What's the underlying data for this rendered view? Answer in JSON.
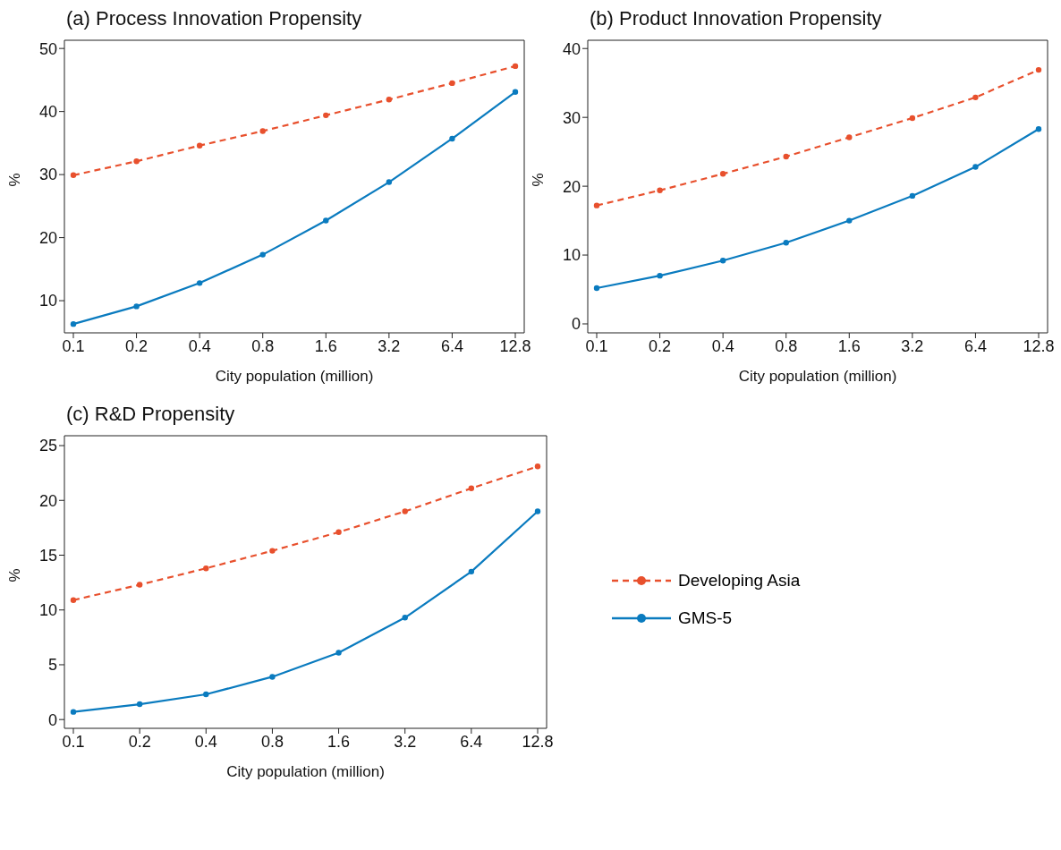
{
  "chart_data": [
    {
      "type": "line",
      "title": "(a) Process Innovation Propensity",
      "xlabel": "City population (million)",
      "ylabel": "%",
      "categories": [
        "0.1",
        "0.2",
        "0.4",
        "0.8",
        "1.6",
        "3.2",
        "6.4",
        "12.8"
      ],
      "ylim": [
        4.9,
        51.3
      ],
      "yticks": [
        10,
        20,
        30,
        40,
        50
      ],
      "marker": "circle",
      "series": [
        {
          "color": "#e8502d",
          "line_style": "dashed",
          "values": [
            29.9,
            32.1,
            34.6,
            36.9,
            39.4,
            41.9,
            44.5,
            47.2
          ]
        },
        {
          "color": "#0a7bbf",
          "line_style": "solid",
          "values": [
            6.3,
            9.1,
            12.8,
            17.3,
            22.7,
            28.8,
            35.7,
            43.1
          ]
        }
      ]
    },
    {
      "type": "line",
      "title": "(b) Product Innovation Propensity",
      "xlabel": "City population (million)",
      "ylabel": "%",
      "categories": [
        "0.1",
        "0.2",
        "0.4",
        "0.8",
        "1.6",
        "3.2",
        "6.4",
        "12.8"
      ],
      "ylim": [
        -1.3,
        41.2
      ],
      "yticks": [
        0,
        10,
        20,
        30,
        40
      ],
      "marker": "circle",
      "series": [
        {
          "color": "#e8502d",
          "line_style": "dashed",
          "values": [
            17.2,
            19.4,
            21.8,
            24.3,
            27.1,
            29.9,
            32.9,
            36.9
          ]
        },
        {
          "color": "#0a7bbf",
          "line_style": "solid",
          "values": [
            5.2,
            7.0,
            9.2,
            11.8,
            15.0,
            18.6,
            22.8,
            28.3
          ]
        }
      ]
    },
    {
      "type": "line",
      "title": "(c) R&D Propensity",
      "xlabel": "City population (million)",
      "ylabel": "%",
      "categories": [
        "0.1",
        "0.2",
        "0.4",
        "0.8",
        "1.6",
        "3.2",
        "6.4",
        "12.8"
      ],
      "ylim": [
        -0.8,
        25.9
      ],
      "yticks": [
        0,
        5,
        10,
        15,
        20,
        25
      ],
      "marker": "circle",
      "legend": "right",
      "series": [
        {
          "name": "Developing Asia",
          "color": "#e8502d",
          "line_style": "dashed",
          "values": [
            10.9,
            12.3,
            13.8,
            15.4,
            17.1,
            19.0,
            21.1,
            23.1
          ]
        },
        {
          "name": "GMS-5",
          "color": "#0a7bbf",
          "line_style": "solid",
          "values": [
            0.7,
            1.4,
            2.3,
            3.9,
            6.1,
            9.3,
            13.5,
            19.0
          ]
        }
      ]
    }
  ]
}
